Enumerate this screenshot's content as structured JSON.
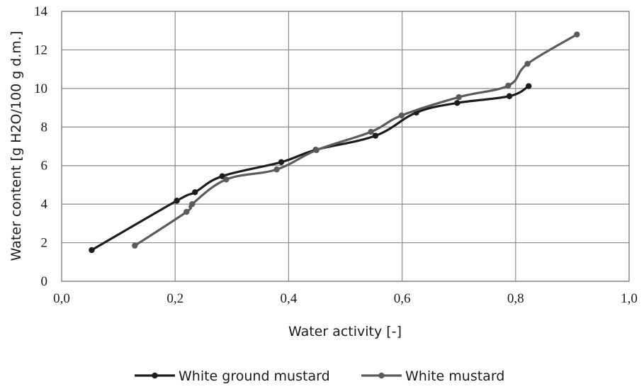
{
  "chart_data": {
    "type": "line",
    "xlabel": "Water activity [-]",
    "ylabel": "Water content [g H2O/100 g d.m.]",
    "xlim": [
      0,
      1
    ],
    "ylim": [
      0,
      14
    ],
    "x_ticks": [
      "0,0",
      "0,2",
      "0,4",
      "0,6",
      "0,8",
      "1,0"
    ],
    "x_tick_values": [
      0,
      0.2,
      0.4,
      0.6,
      0.8,
      1.0
    ],
    "y_ticks": [
      "0",
      "2",
      "4",
      "6",
      "8",
      "10",
      "12",
      "14"
    ],
    "y_tick_values": [
      0,
      2,
      4,
      6,
      8,
      10,
      12,
      14
    ],
    "grid": true,
    "legend_position": "bottom",
    "series": [
      {
        "name": "White ground mustard",
        "color": "#1c1c1c",
        "x": [
          0.053,
          0.203,
          0.235,
          0.283,
          0.387,
          0.448,
          0.553,
          0.625,
          0.697,
          0.789,
          0.823
        ],
        "y": [
          1.62,
          4.18,
          4.62,
          5.45,
          6.18,
          6.82,
          7.55,
          8.75,
          9.25,
          9.6,
          10.12
        ]
      },
      {
        "name": "White mustard",
        "color": "#5b5b5b",
        "x": [
          0.129,
          0.22,
          0.23,
          0.29,
          0.379,
          0.449,
          0.545,
          0.599,
          0.7,
          0.787,
          0.821,
          0.908
        ],
        "y": [
          1.85,
          3.6,
          4.0,
          5.28,
          5.8,
          6.8,
          7.75,
          8.6,
          9.55,
          10.15,
          11.28,
          12.8
        ]
      }
    ]
  }
}
